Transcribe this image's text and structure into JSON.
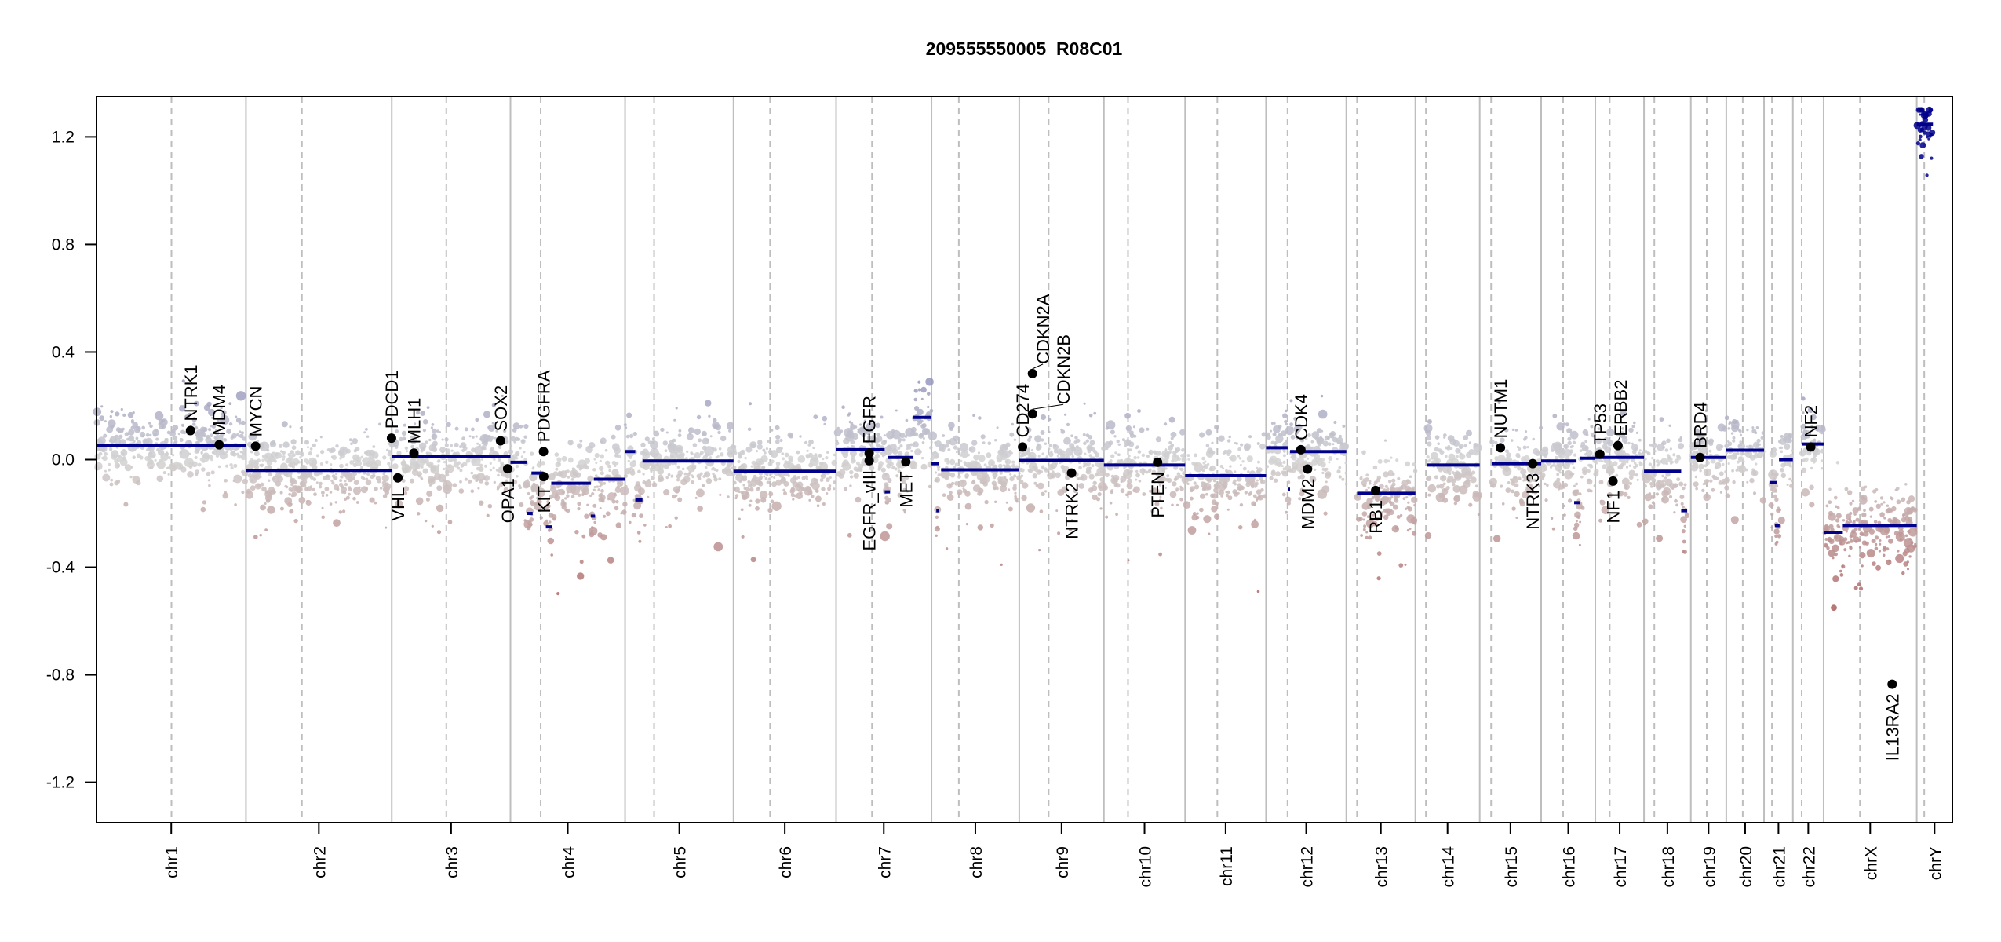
{
  "chart_data": {
    "type": "scatter",
    "title": "209555550005_R08C01",
    "xlabel": "",
    "ylabel": "",
    "ylim": [
      -1.35,
      1.35
    ],
    "y_ticks": [
      -1.2,
      -0.8,
      -0.4,
      0.0,
      0.4,
      0.8,
      1.2
    ],
    "y_tick_labels": [
      "-1.2",
      "-0.8",
      "-0.4",
      "0.0",
      "0.4",
      "0.8",
      "1.2"
    ],
    "grid": false,
    "x_unit": "Mb",
    "colors": {
      "segment": "#00008b",
      "gain": "#00008b",
      "loss": "#8b0000",
      "neutral": "#d3d3d3",
      "chromosome_boundary": "#bebebe",
      "centromere": "#bebebe",
      "gene_dot": "#000000"
    },
    "chromosomes": [
      {
        "name": "chr1",
        "length": 249.25,
        "centromere": 125.0
      },
      {
        "name": "chr2",
        "length": 243.2,
        "centromere": 93.3
      },
      {
        "name": "chr3",
        "length": 198.0,
        "centromere": 91.0
      },
      {
        "name": "chr4",
        "length": 191.15,
        "centromere": 50.4
      },
      {
        "name": "chr5",
        "length": 180.9,
        "centromere": 48.4
      },
      {
        "name": "chr6",
        "length": 171.1,
        "centromere": 61.0
      },
      {
        "name": "chr7",
        "length": 159.1,
        "centromere": 59.9
      },
      {
        "name": "chr8",
        "length": 146.4,
        "centromere": 45.6
      },
      {
        "name": "chr9",
        "length": 141.2,
        "centromere": 49.0
      },
      {
        "name": "chr10",
        "length": 135.5,
        "centromere": 40.2
      },
      {
        "name": "chr11",
        "length": 135.0,
        "centromere": 53.7
      },
      {
        "name": "chr12",
        "length": 133.85,
        "centromere": 35.8
      },
      {
        "name": "chr13",
        "length": 115.2,
        "centromere": 17.9
      },
      {
        "name": "chr14",
        "length": 107.3,
        "centromere": 17.6
      },
      {
        "name": "chr15",
        "length": 102.5,
        "centromere": 19.0
      },
      {
        "name": "chr16",
        "length": 90.35,
        "centromere": 36.6
      },
      {
        "name": "chr17",
        "length": 81.2,
        "centromere": 24.0
      },
      {
        "name": "chr18",
        "length": 78.1,
        "centromere": 17.2
      },
      {
        "name": "chr19",
        "length": 59.1,
        "centromere": 26.5
      },
      {
        "name": "chr20",
        "length": 63.0,
        "centromere": 27.5
      },
      {
        "name": "chr21",
        "length": 48.1,
        "centromere": 13.2
      },
      {
        "name": "chr22",
        "length": 51.3,
        "centromere": 14.7
      },
      {
        "name": "chrX",
        "length": 155.3,
        "centromere": 60.6
      },
      {
        "name": "chrY",
        "length": 59.4,
        "centromere": 12.5
      }
    ],
    "segments": [
      {
        "chr": "chr1",
        "start": 0,
        "end": 249.25,
        "value": 0.052
      },
      {
        "chr": "chr2",
        "start": 0,
        "end": 243.2,
        "value": -0.04
      },
      {
        "chr": "chr3",
        "start": 0,
        "end": 198.0,
        "value": 0.012
      },
      {
        "chr": "chr4",
        "start": 0,
        "end": 28,
        "value": -0.01
      },
      {
        "chr": "chr4",
        "start": 27,
        "end": 37,
        "value": -0.2
      },
      {
        "chr": "chr4",
        "start": 35,
        "end": 55,
        "value": -0.05
      },
      {
        "chr": "chr4",
        "start": 59,
        "end": 69,
        "value": -0.25
      },
      {
        "chr": "chr4",
        "start": 68,
        "end": 134,
        "value": -0.088
      },
      {
        "chr": "chr4",
        "start": 134,
        "end": 141,
        "value": -0.21
      },
      {
        "chr": "chr4",
        "start": 139,
        "end": 191.15,
        "value": -0.073
      },
      {
        "chr": "chr5",
        "start": 0,
        "end": 17,
        "value": 0.03
      },
      {
        "chr": "chr5",
        "start": 17,
        "end": 29,
        "value": -0.15
      },
      {
        "chr": "chr5",
        "start": 29,
        "end": 180.9,
        "value": -0.005
      },
      {
        "chr": "chr6",
        "start": 0,
        "end": 171.1,
        "value": -0.043
      },
      {
        "chr": "chr7",
        "start": 0,
        "end": 81,
        "value": 0.037
      },
      {
        "chr": "chr7",
        "start": 81,
        "end": 90,
        "value": -0.12
      },
      {
        "chr": "chr7",
        "start": 87,
        "end": 129,
        "value": 0.008
      },
      {
        "chr": "chr7",
        "start": 129,
        "end": 159.1,
        "value": 0.157
      },
      {
        "chr": "chr8",
        "start": 0,
        "end": 13,
        "value": -0.015
      },
      {
        "chr": "chr8",
        "start": 8,
        "end": 12,
        "value": -0.19
      },
      {
        "chr": "chr8",
        "start": 16,
        "end": 146.4,
        "value": -0.038
      },
      {
        "chr": "chr9",
        "start": 0,
        "end": 141.2,
        "value": -0.003
      },
      {
        "chr": "chr10",
        "start": 0,
        "end": 135.5,
        "value": -0.02
      },
      {
        "chr": "chr11",
        "start": 0,
        "end": 135.0,
        "value": -0.06
      },
      {
        "chr": "chr12",
        "start": 0,
        "end": 36,
        "value": 0.044
      },
      {
        "chr": "chr12",
        "start": 36,
        "end": 40,
        "value": -0.11
      },
      {
        "chr": "chr12",
        "start": 40,
        "end": 133.85,
        "value": 0.03
      },
      {
        "chr": "chr13",
        "start": 18,
        "end": 115.2,
        "value": -0.125
      },
      {
        "chr": "chr14",
        "start": 19,
        "end": 107.3,
        "value": -0.02
      },
      {
        "chr": "chr15",
        "start": 20,
        "end": 102.5,
        "value": -0.015
      },
      {
        "chr": "chr16",
        "start": 0,
        "end": 59,
        "value": -0.005
      },
      {
        "chr": "chr16",
        "start": 55,
        "end": 65,
        "value": -0.16
      },
      {
        "chr": "chr16",
        "start": 65,
        "end": 90.35,
        "value": 0.005
      },
      {
        "chr": "chr17",
        "start": 0,
        "end": 81.2,
        "value": 0.008
      },
      {
        "chr": "chr18",
        "start": 0,
        "end": 62,
        "value": -0.043
      },
      {
        "chr": "chr18",
        "start": 62,
        "end": 72,
        "value": -0.19
      },
      {
        "chr": "chr19",
        "start": 0,
        "end": 59.1,
        "value": 0.008
      },
      {
        "chr": "chr20",
        "start": 0,
        "end": 63.0,
        "value": 0.035
      },
      {
        "chr": "chr21",
        "start": 9,
        "end": 21,
        "value": -0.085
      },
      {
        "chr": "chr21",
        "start": 18,
        "end": 26,
        "value": -0.245
      },
      {
        "chr": "chr21",
        "start": 25,
        "end": 48.1,
        "value": 0.0
      },
      {
        "chr": "chr22",
        "start": 14.6,
        "end": 51.3,
        "value": 0.058
      },
      {
        "chr": "chrX",
        "start": 0,
        "end": 32,
        "value": -0.27
      },
      {
        "chr": "chrX",
        "start": 32,
        "end": 155.3,
        "value": -0.245
      },
      {
        "chr": "chrY",
        "start": 0,
        "end": 27,
        "value": 1.247
      }
    ],
    "genes": [
      {
        "name": "NTRK1",
        "chr": "chr1",
        "pos": 156.8,
        "value": 0.108,
        "side": "above"
      },
      {
        "name": "MDM4",
        "chr": "chr1",
        "pos": 204.5,
        "value": 0.055,
        "side": "above"
      },
      {
        "name": "MYCN",
        "chr": "chr2",
        "pos": 16.0,
        "value": 0.05,
        "side": "above"
      },
      {
        "name": "PDCD1",
        "chr": "chr2",
        "pos": 242.8,
        "value": 0.08,
        "side": "above"
      },
      {
        "name": "VHL",
        "chr": "chr3",
        "pos": 10.2,
        "value": -0.068,
        "side": "below"
      },
      {
        "name": "MLH1",
        "chr": "chr3",
        "pos": 37.0,
        "value": 0.024,
        "side": "above"
      },
      {
        "name": "SOX2",
        "chr": "chr3",
        "pos": 181.4,
        "value": 0.07,
        "side": "above"
      },
      {
        "name": "OPA1",
        "chr": "chr3",
        "pos": 193.3,
        "value": -0.034,
        "side": "below"
      },
      {
        "name": "PDGFRA",
        "chr": "chr4",
        "pos": 55.1,
        "value": 0.03,
        "side": "above"
      },
      {
        "name": "KIT",
        "chr": "chr4",
        "pos": 55.5,
        "value": -0.063,
        "side": "below"
      },
      {
        "name": "EGFR",
        "chr": "chr7",
        "pos": 55.1,
        "value": 0.024,
        "side": "above"
      },
      {
        "name": "EGFR_vIII",
        "chr": "chr7",
        "pos": 55.2,
        "value": -0.004,
        "side": "below"
      },
      {
        "name": "MET",
        "chr": "chr7",
        "pos": 116.3,
        "value": -0.008,
        "side": "below"
      },
      {
        "name": "CD274",
        "chr": "chr9",
        "pos": 5.5,
        "value": 0.047,
        "side": "above"
      },
      {
        "name": "CDKN2B",
        "chr": "chr9",
        "pos": 22.0,
        "value": 0.17,
        "side": "above"
      },
      {
        "name": "CDKN2A",
        "chr": "chr9",
        "pos": 21.97,
        "value": 0.32,
        "side": "above"
      },
      {
        "name": "NTRK2",
        "chr": "chr9",
        "pos": 87.3,
        "value": -0.05,
        "side": "below"
      },
      {
        "name": "PTEN",
        "chr": "chr10",
        "pos": 89.6,
        "value": -0.01,
        "side": "below"
      },
      {
        "name": "CDK4",
        "chr": "chr12",
        "pos": 58.1,
        "value": 0.037,
        "side": "above"
      },
      {
        "name": "MDM2",
        "chr": "chr12",
        "pos": 69.2,
        "value": -0.035,
        "side": "below"
      },
      {
        "name": "RB1",
        "chr": "chr13",
        "pos": 48.9,
        "value": -0.115,
        "side": "below"
      },
      {
        "name": "NUTM1",
        "chr": "chr15",
        "pos": 34.6,
        "value": 0.044,
        "side": "above"
      },
      {
        "name": "NTRK3",
        "chr": "chr15",
        "pos": 88.4,
        "value": -0.015,
        "side": "below"
      },
      {
        "name": "TP53",
        "chr": "chr17",
        "pos": 7.6,
        "value": 0.02,
        "side": "above"
      },
      {
        "name": "NF1",
        "chr": "chr17",
        "pos": 29.5,
        "value": -0.08,
        "side": "below"
      },
      {
        "name": "ERBB2",
        "chr": "chr17",
        "pos": 37.8,
        "value": 0.052,
        "side": "above"
      },
      {
        "name": "BRD4",
        "chr": "chr19",
        "pos": 15.4,
        "value": 0.008,
        "side": "above"
      },
      {
        "name": "NF2",
        "chr": "chr22",
        "pos": 29.9,
        "value": 0.047,
        "side": "above"
      },
      {
        "name": "IL13RA2",
        "chr": "chrX",
        "pos": 114.3,
        "value": -0.835,
        "side": "below"
      }
    ]
  }
}
